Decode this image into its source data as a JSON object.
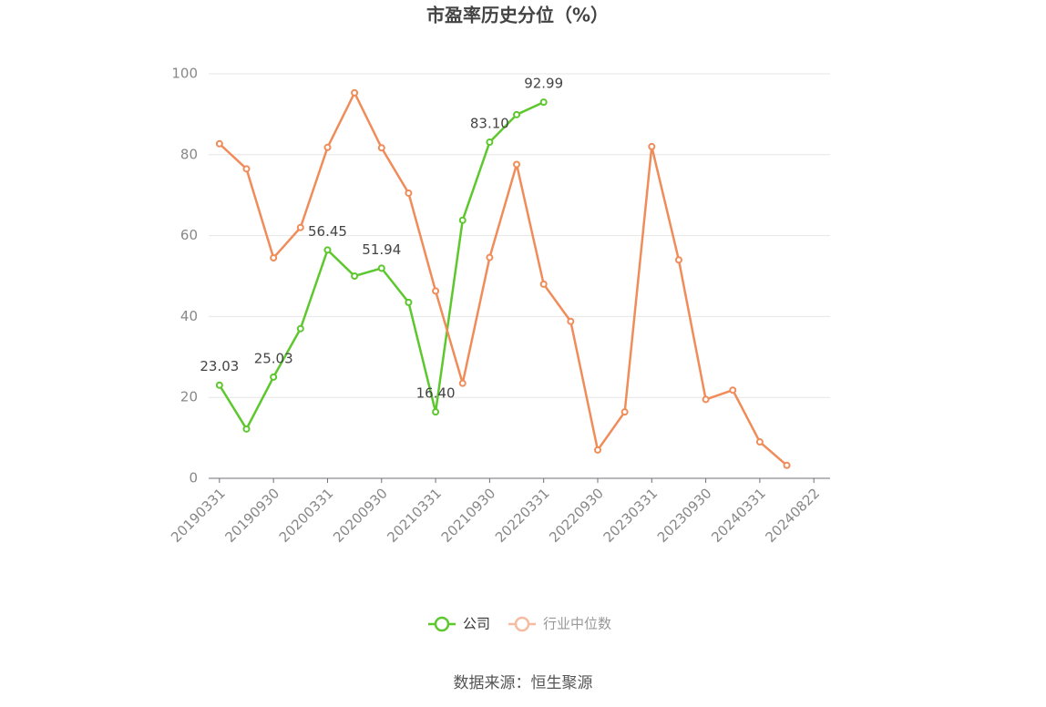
{
  "chart_data": {
    "type": "line",
    "title": "市盈率历史分位（%）",
    "source": "数据来源：恒生聚源",
    "categories": [
      "20190331",
      null,
      "20190930",
      null,
      "20200331",
      null,
      "20200930",
      null,
      "20210331",
      null,
      "20210930",
      null,
      "20220331",
      null,
      "20220930",
      null,
      "20230331",
      null,
      "20230930",
      null,
      "20240331",
      null,
      "20240822"
    ],
    "series": [
      {
        "name": "公司",
        "color": "#5dc72e",
        "values": [
          23.03,
          12.2,
          25.03,
          37,
          56.45,
          50,
          51.94,
          43.5,
          16.4,
          63.8,
          83.1,
          89.9,
          92.99,
          null,
          null,
          null,
          null,
          null,
          null,
          null,
          null,
          null,
          null
        ],
        "value_labels": [
          "23.03",
          null,
          "25.03",
          null,
          "56.45",
          null,
          "51.94",
          null,
          "16.40",
          null,
          "83.10",
          null,
          "92.99",
          null,
          null,
          null,
          null,
          null,
          null,
          null,
          null,
          null,
          null
        ]
      },
      {
        "name": "行业中位数",
        "color": "#f08c5a",
        "values": [
          82.7,
          76.5,
          54.5,
          62,
          81.8,
          95.3,
          81.7,
          70.5,
          46.3,
          23.5,
          54.6,
          77.6,
          48,
          38.8,
          7,
          16.4,
          82,
          54,
          19.5,
          21.8,
          9,
          3.2,
          null
        ]
      }
    ],
    "ylim": [
      0,
      100
    ],
    "yticks": [
      0,
      20,
      40,
      60,
      80,
      100
    ],
    "grid": true
  }
}
